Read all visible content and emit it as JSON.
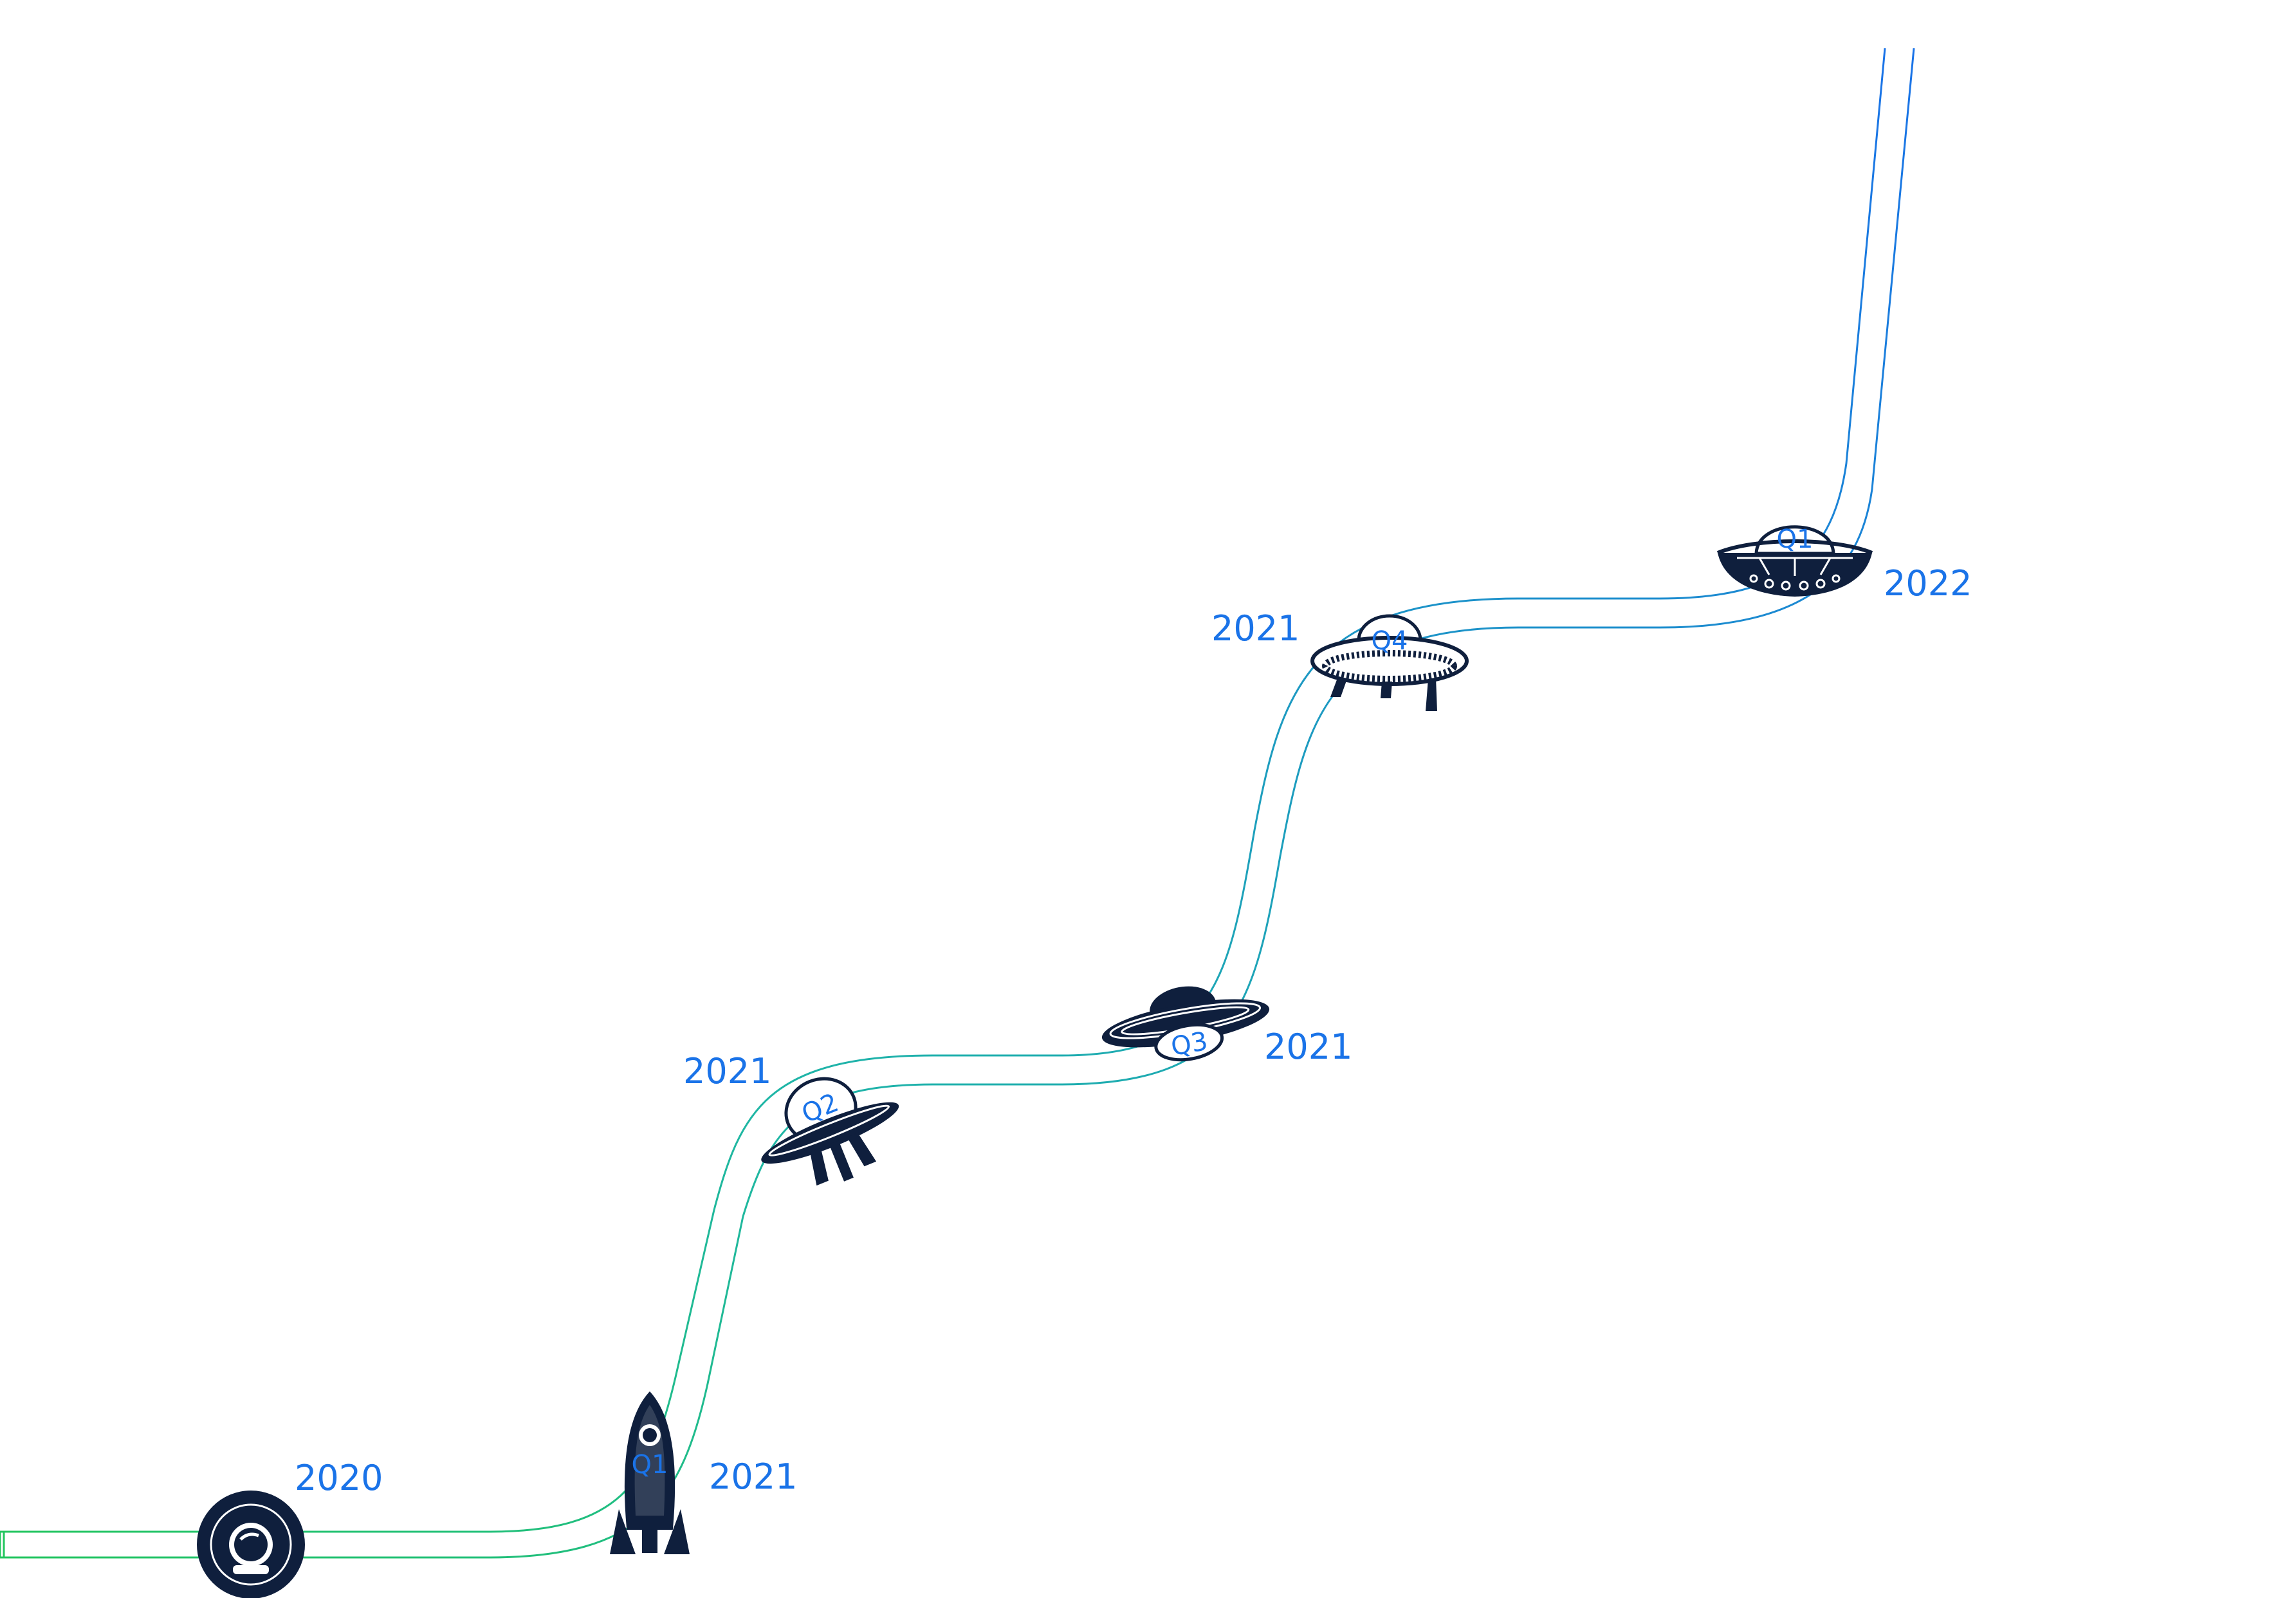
{
  "colors": {
    "track_start": "#22c55e",
    "track_end": "#1a73e8",
    "icon_fill": "#0f1f3d",
    "label": "#1a73e8"
  },
  "milestones": [
    {
      "icon": "astronaut-helmet-icon",
      "year": "2020",
      "quarter": ""
    },
    {
      "icon": "rocket-icon",
      "year": "2021",
      "quarter": "Q1"
    },
    {
      "icon": "ufo-tilted-icon",
      "year": "2021",
      "quarter": "Q2"
    },
    {
      "icon": "flying-saucer-icon",
      "year": "2021",
      "quarter": "Q3"
    },
    {
      "icon": "saucer-with-legs-icon",
      "year": "2021",
      "quarter": "Q4"
    },
    {
      "icon": "ufo-dome-icon",
      "year": "2022",
      "quarter": "Q1"
    }
  ]
}
